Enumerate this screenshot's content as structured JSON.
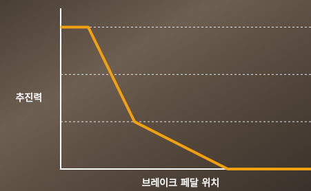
{
  "chart_data": {
    "type": "line",
    "x_label": "브레이크 페달 위치",
    "y_label": "추진력",
    "x": [
      0,
      11,
      29.5,
      66.7,
      100
    ],
    "series": [
      {
        "color": "#f0a010",
        "values": [
          3,
          3,
          1,
          0,
          0
        ]
      }
    ],
    "xlim": [
      0,
      100
    ],
    "ylim": [
      0,
      3.4
    ],
    "yticks": [
      1,
      2,
      3
    ],
    "grid": true
  }
}
